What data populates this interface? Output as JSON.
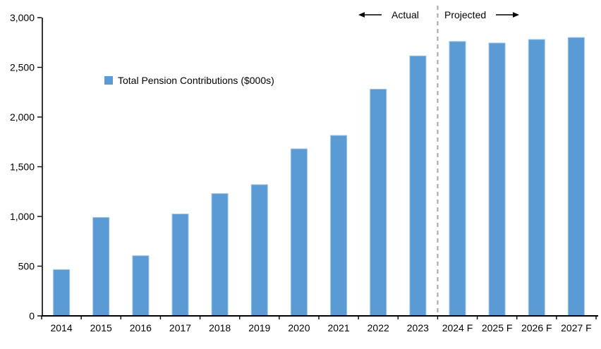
{
  "chart_data": {
    "type": "bar",
    "title": "",
    "legend": "Total Pension Contributions ($000s)",
    "categories": [
      "2014",
      "2015",
      "2016",
      "2017",
      "2018",
      "2019",
      "2020",
      "2021",
      "2022",
      "2023",
      "2024 F",
      "2025 F",
      "2026 F",
      "2027 F"
    ],
    "series": [
      {
        "name": "Total Pension Contributions ($000s)",
        "values": [
          465,
          990,
          605,
          1025,
          1230,
          1320,
          1680,
          1815,
          2280,
          2615,
          2760,
          2745,
          2780,
          2800
        ]
      }
    ],
    "ylim": [
      0,
      3000
    ],
    "ytick_step": 500,
    "ytick_labels": [
      "0",
      "500",
      "1,000",
      "1,500",
      "2,000",
      "2,500",
      "3,000"
    ],
    "grid": false,
    "legend_position": "inside-top-left",
    "annotations": {
      "actual_label": "Actual",
      "projected_label": "Projected",
      "divider_after_category": "2023",
      "divider_style": "dashed"
    },
    "colors": {
      "bar_fill": "#5B9BD5",
      "bar_edge": "#9DC3E6",
      "axis": "#000000",
      "divider": "#A6A6A6",
      "text": "#000000"
    }
  }
}
